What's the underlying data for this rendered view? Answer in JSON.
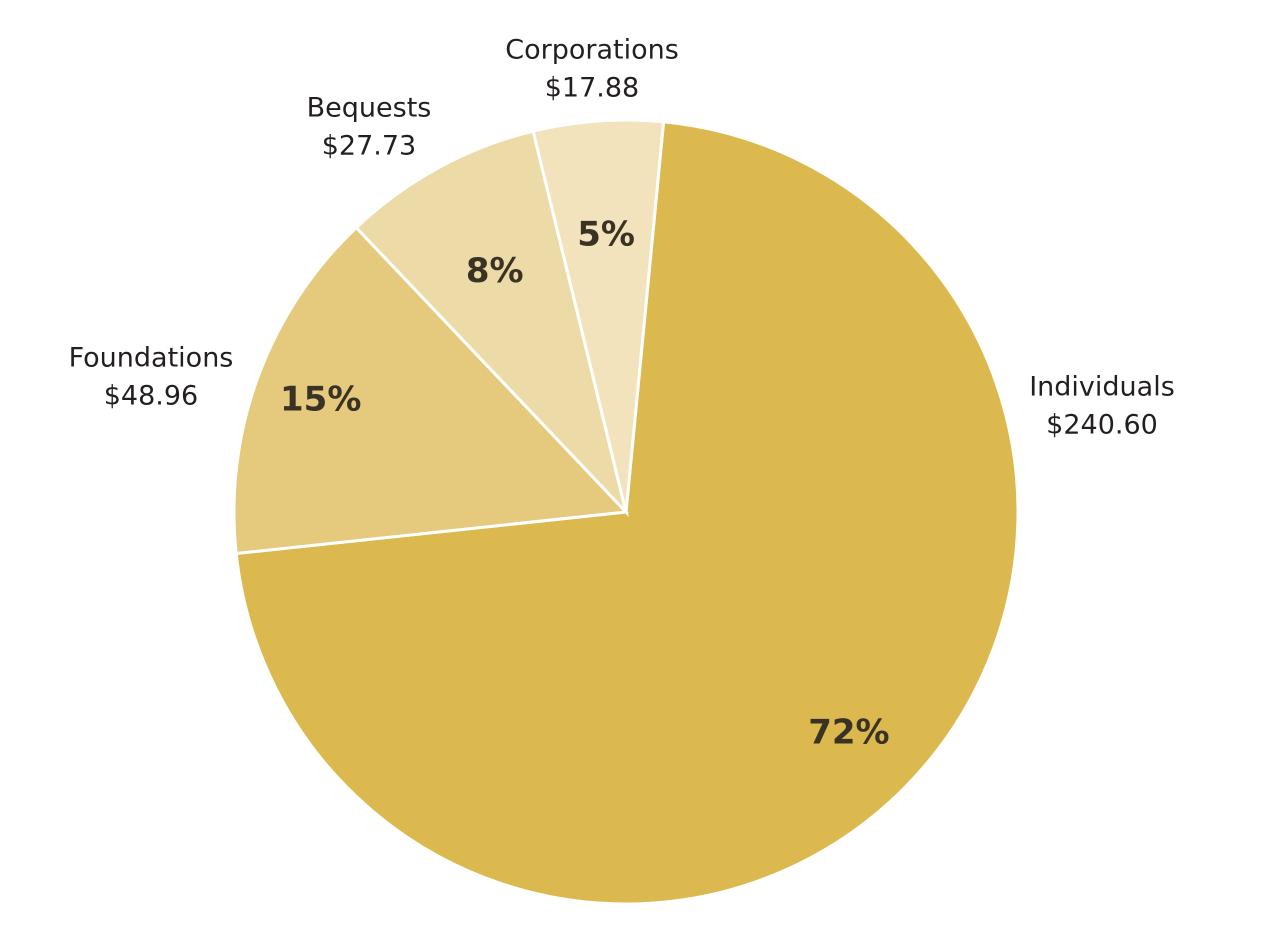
{
  "chart_data": {
    "type": "pie",
    "title": "",
    "start_angle_deg": -84.5,
    "direction": "clockwise",
    "slices": [
      {
        "name": "Individuals",
        "value_label": "$240.60",
        "value": 240.6,
        "percent_label": "72%",
        "color": "#dcb94f"
      },
      {
        "name": "Foundations",
        "value_label": "$48.96",
        "value": 48.96,
        "percent_label": "15%",
        "color": "#e5c97d"
      },
      {
        "name": "Bequests",
        "value_label": "$27.73",
        "value": 27.73,
        "percent_label": "8%",
        "color": "#eddba7"
      },
      {
        "name": "Corporations",
        "value_label": "$17.88",
        "value": 17.88,
        "percent_label": "5%",
        "color": "#f2e3bc"
      }
    ]
  }
}
